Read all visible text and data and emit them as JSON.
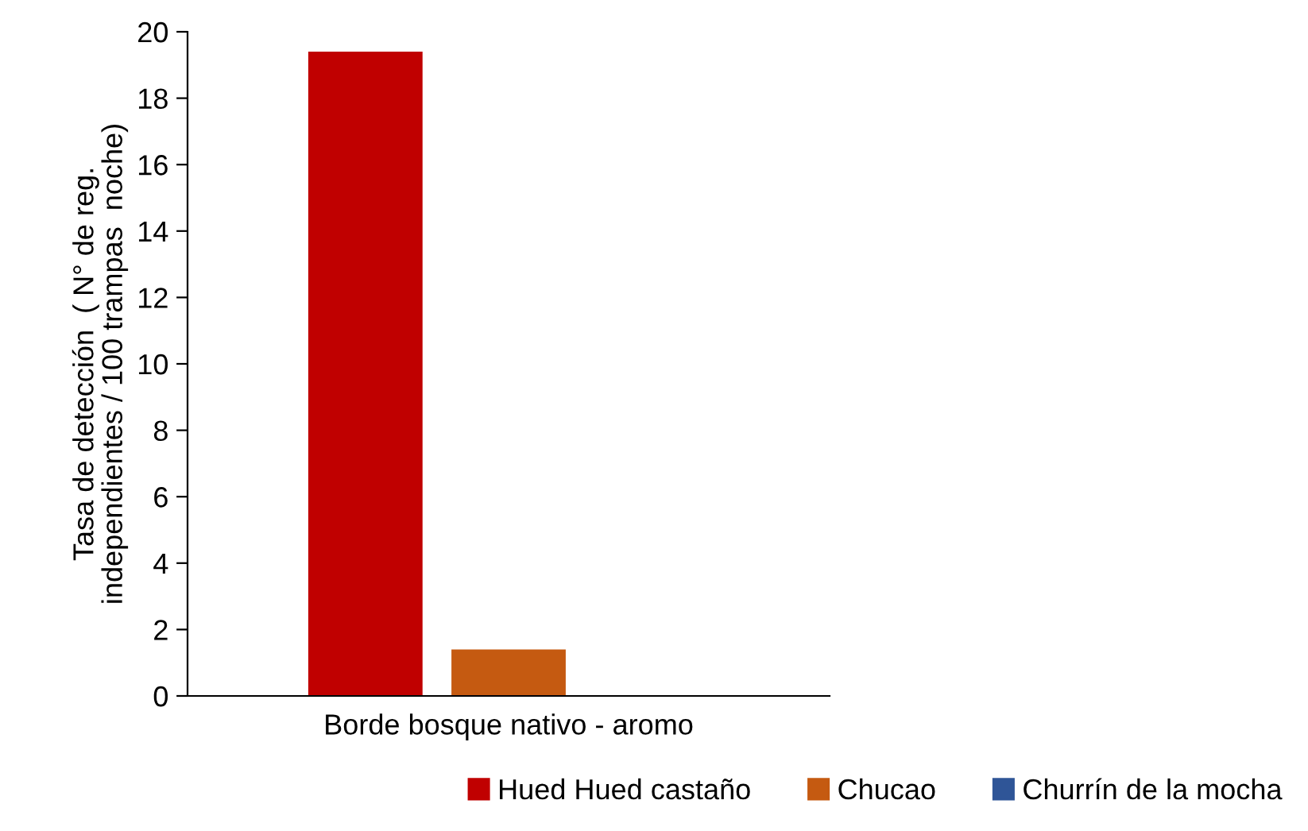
{
  "chart_data": {
    "type": "bar",
    "ylabel": "Tasa de detección  ( N° de reg.\nindependientes / 100 trampas  noche)",
    "categories": [
      "Borde bosque nativo - aromo"
    ],
    "series": [
      {
        "name": "Hued Hued castaño",
        "color": "#c00000",
        "values": [
          19.4
        ]
      },
      {
        "name": "Chucao",
        "color": "#c55a11",
        "values": [
          1.4
        ]
      },
      {
        "name": "Churrín de la mocha",
        "color": "#2f5597",
        "values": [
          0
        ]
      }
    ],
    "ylim": [
      0,
      20
    ],
    "yticks": [
      0,
      2,
      4,
      6,
      8,
      10,
      12,
      14,
      16,
      18,
      20
    ],
    "grid": false,
    "legend": "bottom"
  }
}
